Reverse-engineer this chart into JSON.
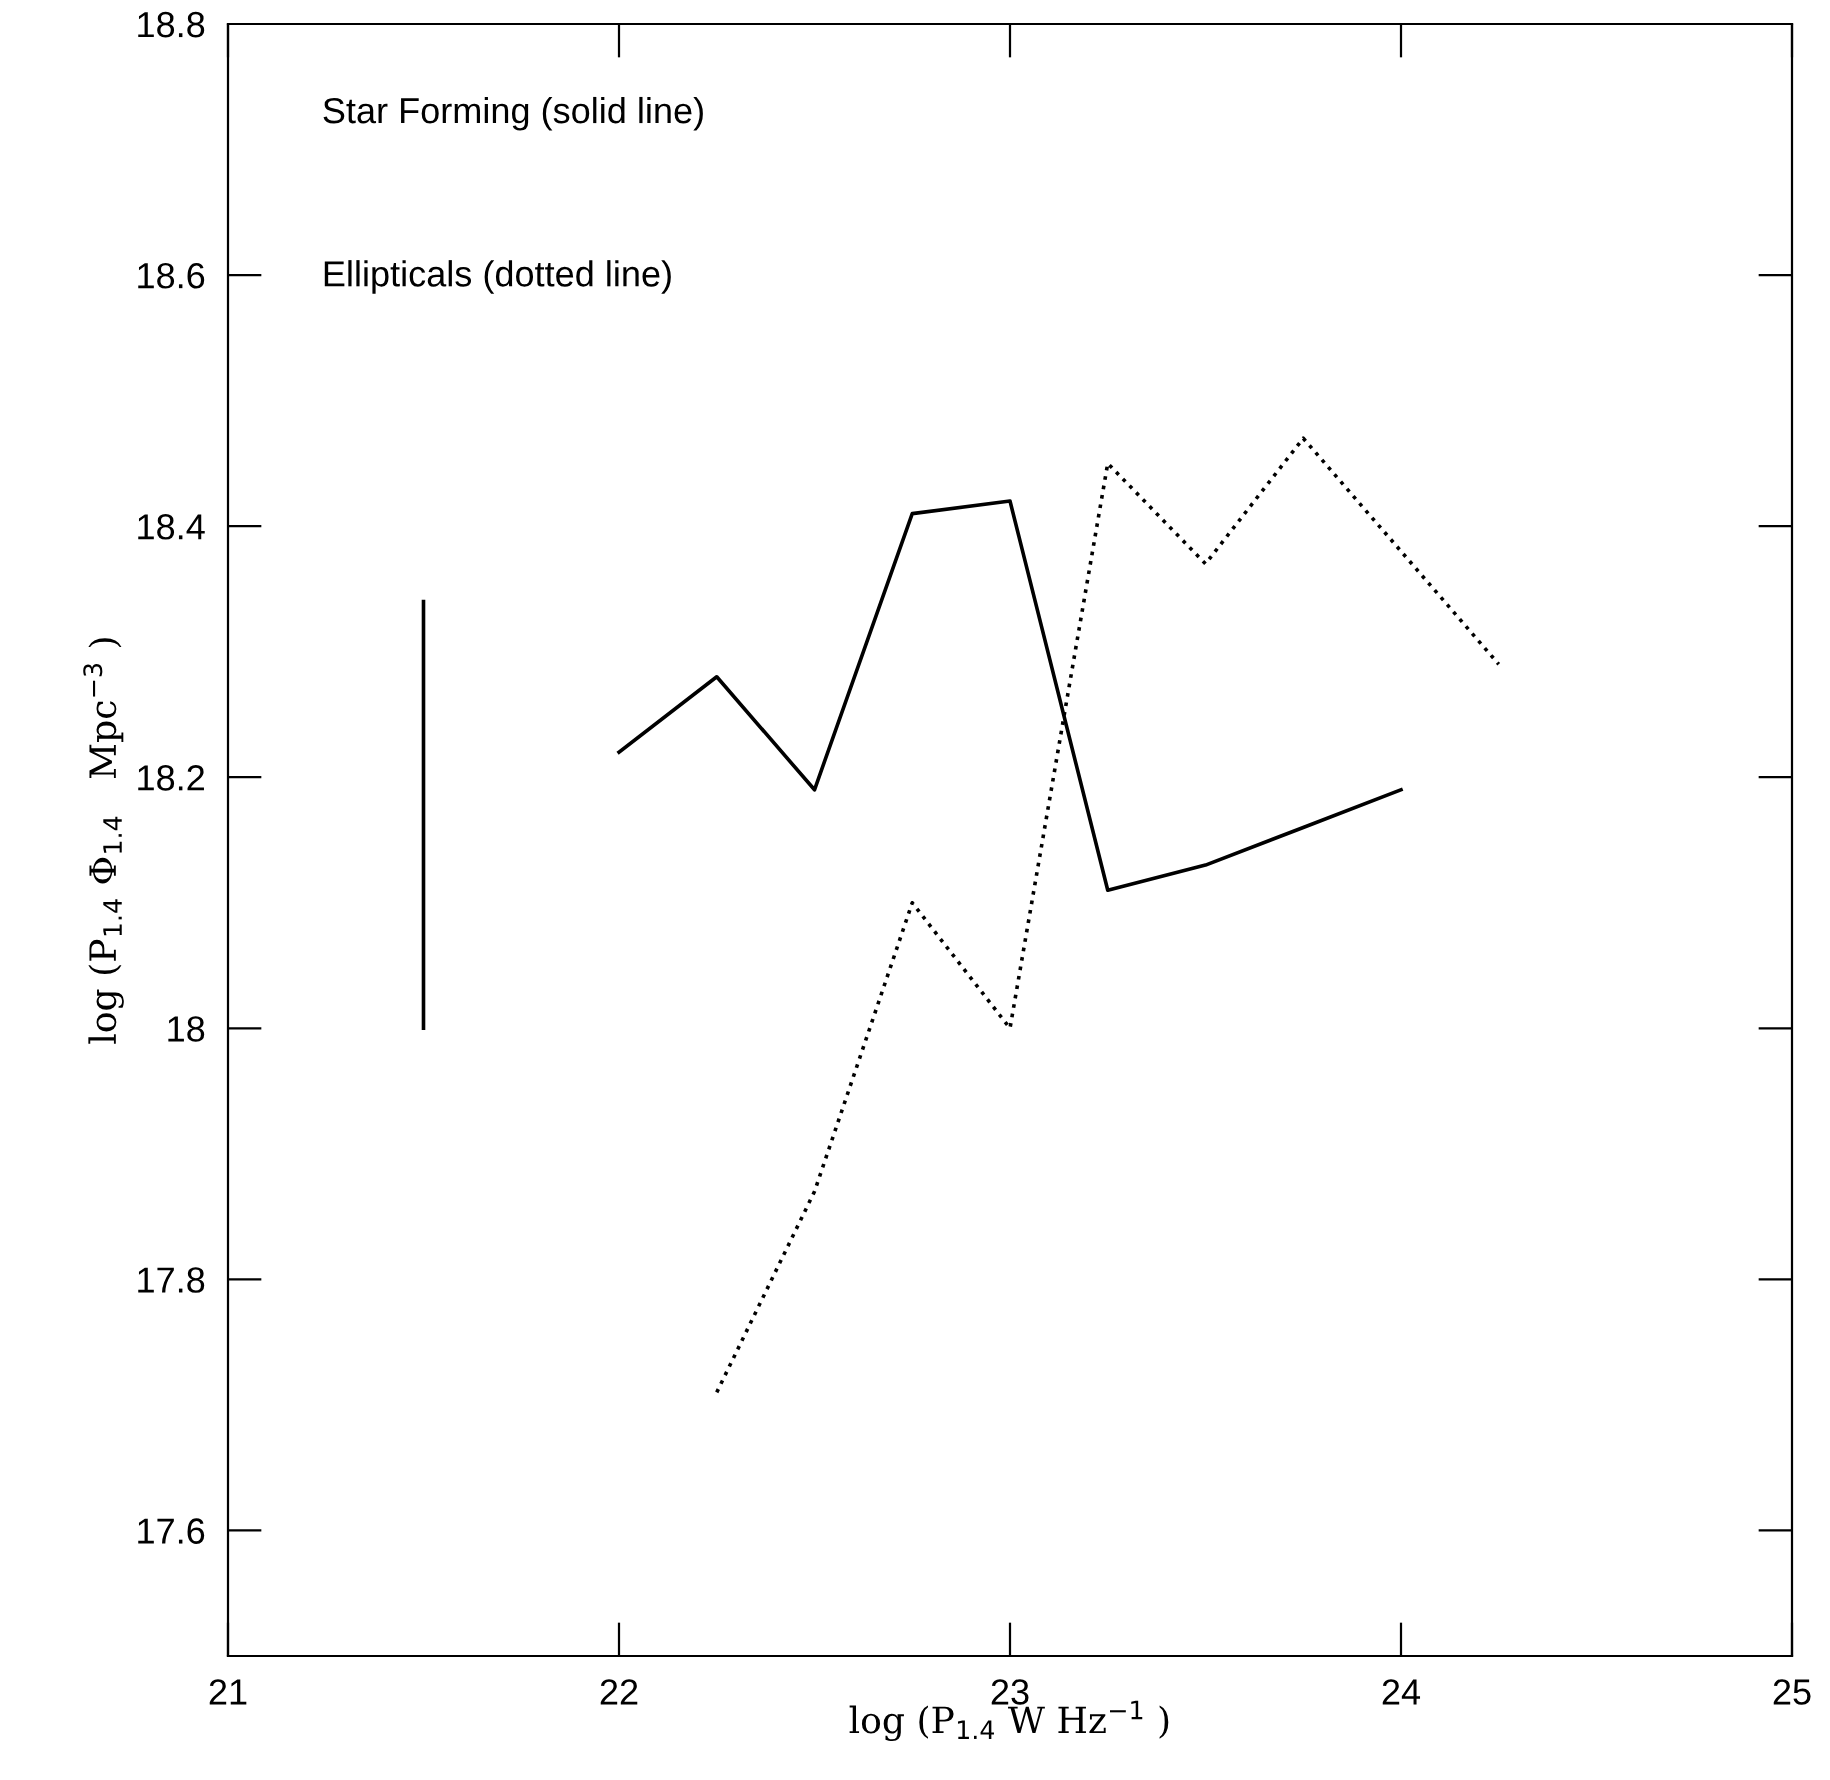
{
  "chart_data": {
    "type": "line",
    "xlabel": "log (P$_{1.4}$ W Hz$^{−1}$ )",
    "ylabel": "log (P$_{1.4}$ Φ$_{1.4}$   Mpc$^{−3}$ )",
    "annotations": [
      "Star Forming (solid line)",
      "Ellipticals (dotted line)"
    ],
    "xlim": [
      21,
      25
    ],
    "xticks": [
      21,
      22,
      23,
      24,
      25
    ],
    "ylim": [
      17.5,
      18.8
    ],
    "yticks": [
      17.6,
      17.8,
      18,
      18.2,
      18.4,
      18.6,
      18.8
    ],
    "grid": false,
    "legend": false,
    "marker": "none",
    "series": [
      {
        "color": "#000000",
        "line_style": "solid",
        "x": [
          22,
          22.25,
          22.5,
          22.75,
          23,
          23.25,
          23.5,
          23.75,
          24
        ],
        "values": [
          18.22,
          18.28,
          18.19,
          18.41,
          18.42,
          18.11,
          18.13,
          18.16,
          18.19
        ]
      },
      {
        "color": "#000000",
        "line_style": "dotted",
        "x": [
          22.25,
          22.5,
          22.75,
          23,
          23.25,
          23.5,
          23.75,
          24,
          24.25
        ],
        "values": [
          17.71,
          17.87,
          18.1,
          18.0,
          18.45,
          18.37,
          18.47,
          18.38,
          18.29
        ]
      },
      {
        "color": "#000000",
        "line_style": "solid",
        "x": [
          21.5,
          21.5
        ],
        "values": [
          18.0,
          18.34
        ]
      }
    ]
  }
}
